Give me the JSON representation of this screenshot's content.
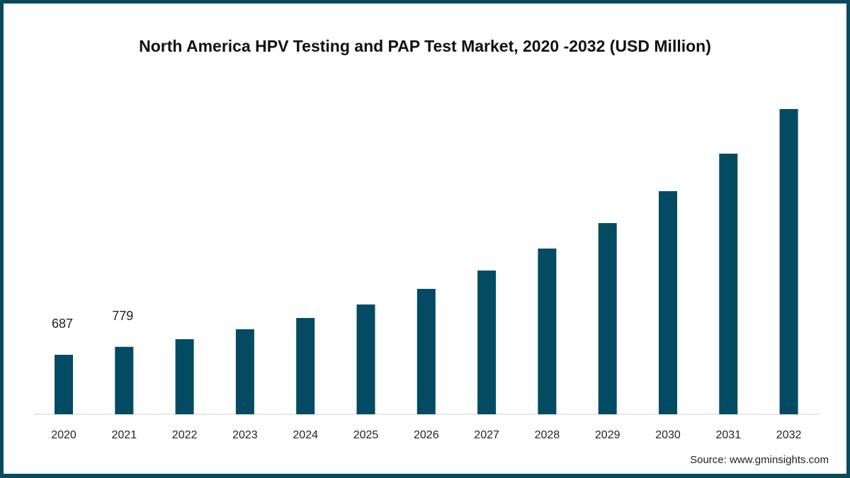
{
  "chart_data": {
    "type": "bar",
    "title": "North America HPV Testing and PAP Test  Market, 2020 -2032 (USD Million)",
    "xlabel": "",
    "ylabel": "",
    "categories": [
      "2020",
      "2021",
      "2022",
      "2023",
      "2024",
      "2025",
      "2026",
      "2027",
      "2028",
      "2029",
      "2030",
      "2031",
      "2032"
    ],
    "values": [
      687,
      779,
      867,
      982,
      1112,
      1268,
      1448,
      1660,
      1914,
      2208,
      2577,
      3010,
      3525
    ],
    "data_labels": {
      "0": "687",
      "1": "779"
    },
    "ylim": [
      0,
      3600
    ],
    "grid": false,
    "bar_color": "#034b63",
    "source": "Source: www.gminsights.com"
  }
}
